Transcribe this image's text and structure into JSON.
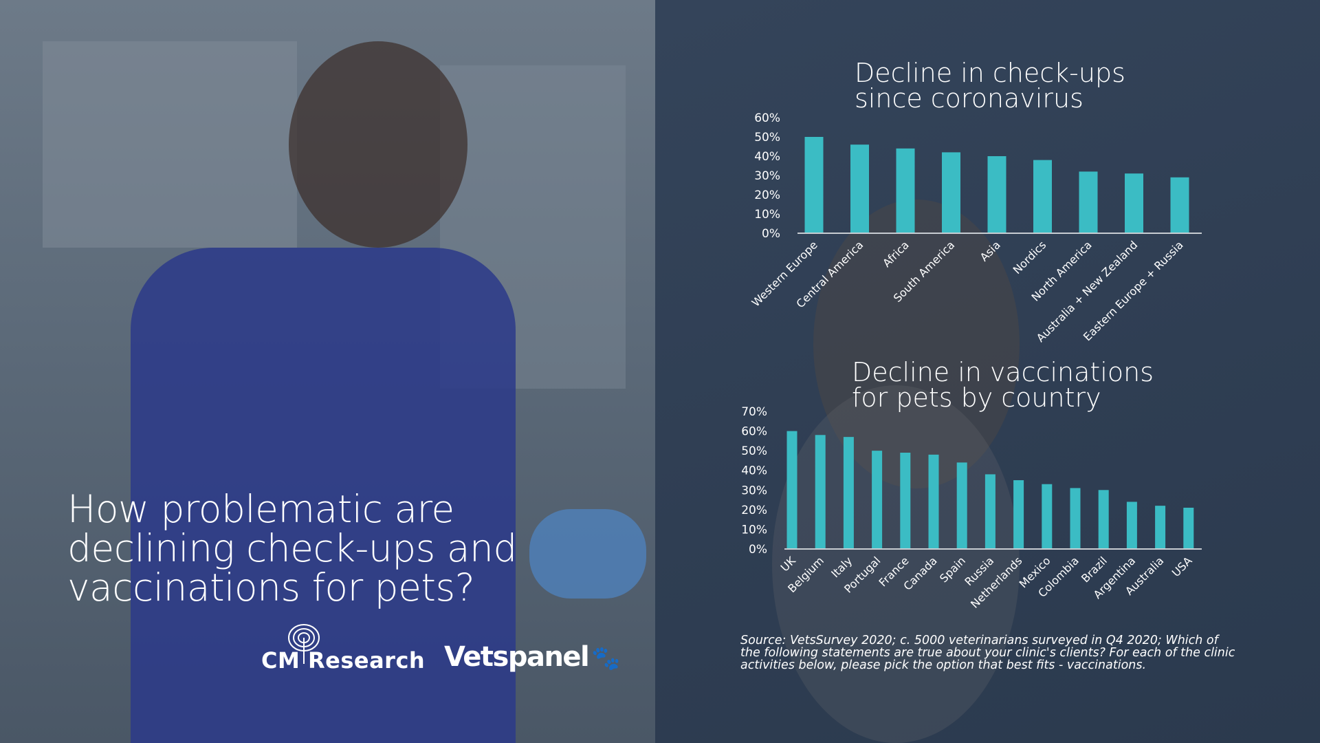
{
  "headline": {
    "lines": [
      "How problematic are",
      "declining check-ups and",
      "vaccinations for pets?"
    ]
  },
  "logos": {
    "cm_research": "CM Research",
    "vetspanel": "Vetspanel"
  },
  "colors": {
    "bar": "#3bbcc4",
    "axis": "#c8cdd2",
    "right_bg": "#2f3e53"
  },
  "source": "Source: VetsSurvey 2020; c. 5000 veterinarians surveyed in Q4 2020; Which of the following statements are true about your clinic's clients? For each of the clinic activities below, please pick the option that best fits - vaccinations.",
  "chart_data": [
    {
      "type": "bar",
      "title_lines": [
        "Decline in check-ups",
        "since coronavirus"
      ],
      "categories": [
        "Western Europe",
        "Central America",
        "Africa",
        "South America",
        "Asia",
        "Nordics",
        "North America",
        "Australia + New Zealand",
        "Eastern Europe + Russia"
      ],
      "values": [
        50,
        46,
        44,
        42,
        40,
        38,
        32,
        31,
        29
      ],
      "yticks": [
        "0%",
        "10%",
        "20%",
        "30%",
        "40%",
        "50%",
        "60%"
      ],
      "ylim": [
        0,
        60
      ],
      "xlabel": "",
      "ylabel": "",
      "grid": false
    },
    {
      "type": "bar",
      "title_lines": [
        "Decline in vaccinations",
        "for pets by country"
      ],
      "categories": [
        "UK",
        "Belgium",
        "Italy",
        "Portugal",
        "France",
        "Canada",
        "Spain",
        "Russia",
        "Netherlands",
        "Mexico",
        "Colombia",
        "Brazil",
        "Argentina",
        "Australia",
        "USA"
      ],
      "values": [
        60,
        58,
        57,
        50,
        49,
        48,
        44,
        38,
        35,
        33,
        31,
        30,
        24,
        22,
        21
      ],
      "yticks": [
        "0%",
        "10%",
        "20%",
        "30%",
        "40%",
        "50%",
        "60%",
        "70%"
      ],
      "ylim": [
        0,
        70
      ],
      "xlabel": "",
      "ylabel": "",
      "grid": false
    }
  ]
}
